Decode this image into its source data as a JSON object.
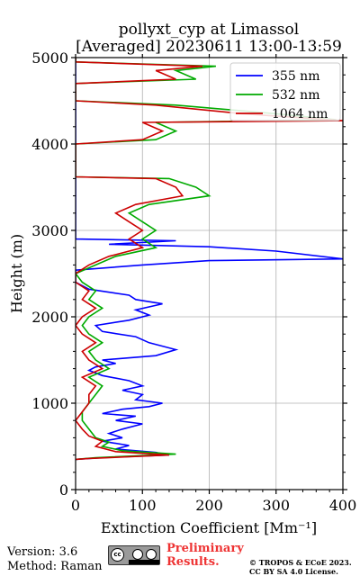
{
  "title": "pollyxt_cyp at Limassol",
  "subtitle": "[Averaged] 20230611 13:00-13:59",
  "footer": {
    "version": "Version: 3.6",
    "method": "Method: Raman",
    "preliminary": [
      "Preliminary",
      "Results."
    ],
    "copyright": [
      "© TROPOS & ECoE 2023.",
      "CC BY SA 4.0 License."
    ],
    "license_logo_text": "cc BY SA"
  },
  "chart_data": {
    "type": "line",
    "xlabel": "Extinction Coefficient [Mm⁻¹]",
    "ylabel": "Height (m)",
    "xlim": [
      0,
      400
    ],
    "ylim": [
      0,
      5000
    ],
    "xticks": [
      0,
      100,
      200,
      300,
      400
    ],
    "yticks": [
      0,
      1000,
      2000,
      3000,
      4000,
      5000
    ],
    "grid": true,
    "legend": "top-right",
    "series": [
      {
        "name": "355 nm",
        "color": "#0000ff",
        "points": [
          [
            0,
            350
          ],
          [
            40,
            370
          ],
          [
            140,
            400
          ],
          [
            120,
            430
          ],
          [
            60,
            470
          ],
          [
            80,
            510
          ],
          [
            40,
            560
          ],
          [
            70,
            600
          ],
          [
            50,
            650
          ],
          [
            70,
            700
          ],
          [
            100,
            760
          ],
          [
            60,
            800
          ],
          [
            90,
            850
          ],
          [
            40,
            880
          ],
          [
            70,
            930
          ],
          [
            110,
            960
          ],
          [
            130,
            1000
          ],
          [
            90,
            1040
          ],
          [
            100,
            1100
          ],
          [
            70,
            1150
          ],
          [
            100,
            1200
          ],
          [
            80,
            1260
          ],
          [
            40,
            1320
          ],
          [
            20,
            1380
          ],
          [
            30,
            1420
          ],
          [
            60,
            1460
          ],
          [
            40,
            1500
          ],
          [
            120,
            1550
          ],
          [
            150,
            1620
          ],
          [
            110,
            1700
          ],
          [
            90,
            1770
          ],
          [
            40,
            1830
          ],
          [
            30,
            1900
          ],
          [
            80,
            1960
          ],
          [
            110,
            2020
          ],
          [
            90,
            2080
          ],
          [
            130,
            2150
          ],
          [
            90,
            2200
          ],
          [
            80,
            2250
          ],
          [
            20,
            2320
          ],
          [
            0,
            2400
          ],
          [
            0,
            2540
          ],
          [
            100,
            2600
          ],
          [
            200,
            2650
          ],
          [
            400,
            2670
          ],
          [
            300,
            2760
          ],
          [
            200,
            2810
          ],
          [
            50,
            2840
          ],
          [
            150,
            2880
          ],
          [
            0,
            2900
          ],
          [
            0,
            5000
          ]
        ]
      },
      {
        "name": "532 nm",
        "color": "#00aa00",
        "points": [
          [
            0,
            350
          ],
          [
            30,
            370
          ],
          [
            150,
            410
          ],
          [
            70,
            450
          ],
          [
            40,
            500
          ],
          [
            50,
            550
          ],
          [
            30,
            600
          ],
          [
            20,
            700
          ],
          [
            10,
            800
          ],
          [
            10,
            900
          ],
          [
            20,
            1000
          ],
          [
            30,
            1100
          ],
          [
            40,
            1200
          ],
          [
            20,
            1300
          ],
          [
            50,
            1400
          ],
          [
            30,
            1500
          ],
          [
            20,
            1600
          ],
          [
            40,
            1700
          ],
          [
            20,
            1800
          ],
          [
            10,
            1900
          ],
          [
            20,
            2000
          ],
          [
            40,
            2100
          ],
          [
            20,
            2200
          ],
          [
            30,
            2300
          ],
          [
            10,
            2400
          ],
          [
            0,
            2500
          ],
          [
            30,
            2600
          ],
          [
            60,
            2700
          ],
          [
            120,
            2800
          ],
          [
            100,
            2900
          ],
          [
            120,
            3000
          ],
          [
            100,
            3100
          ],
          [
            80,
            3200
          ],
          [
            110,
            3300
          ],
          [
            200,
            3400
          ],
          [
            180,
            3500
          ],
          [
            140,
            3600
          ],
          [
            0,
            3620
          ],
          [
            0,
            4000
          ],
          [
            120,
            4050
          ],
          [
            150,
            4150
          ],
          [
            120,
            4250
          ],
          [
            390,
            4280
          ],
          [
            300,
            4350
          ],
          [
            150,
            4450
          ],
          [
            0,
            4500
          ],
          [
            0,
            4700
          ],
          [
            180,
            4750
          ],
          [
            150,
            4850
          ],
          [
            210,
            4900
          ],
          [
            0,
            4950
          ],
          [
            0,
            5000
          ]
        ]
      },
      {
        "name": "1064 nm",
        "color": "#cc0000",
        "points": [
          [
            0,
            350
          ],
          [
            20,
            360
          ],
          [
            140,
            400
          ],
          [
            60,
            440
          ],
          [
            30,
            500
          ],
          [
            40,
            560
          ],
          [
            20,
            620
          ],
          [
            10,
            700
          ],
          [
            0,
            800
          ],
          [
            10,
            900
          ],
          [
            20,
            1000
          ],
          [
            20,
            1100
          ],
          [
            30,
            1200
          ],
          [
            10,
            1300
          ],
          [
            40,
            1400
          ],
          [
            20,
            1500
          ],
          [
            10,
            1600
          ],
          [
            30,
            1700
          ],
          [
            10,
            1800
          ],
          [
            0,
            1900
          ],
          [
            10,
            2000
          ],
          [
            30,
            2100
          ],
          [
            10,
            2200
          ],
          [
            20,
            2300
          ],
          [
            0,
            2400
          ],
          [
            0,
            2500
          ],
          [
            20,
            2600
          ],
          [
            50,
            2700
          ],
          [
            100,
            2800
          ],
          [
            80,
            2900
          ],
          [
            100,
            3000
          ],
          [
            80,
            3100
          ],
          [
            60,
            3200
          ],
          [
            90,
            3300
          ],
          [
            160,
            3400
          ],
          [
            150,
            3500
          ],
          [
            120,
            3600
          ],
          [
            0,
            3620
          ],
          [
            0,
            4000
          ],
          [
            100,
            4050
          ],
          [
            130,
            4150
          ],
          [
            100,
            4250
          ],
          [
            400,
            4270
          ],
          [
            250,
            4350
          ],
          [
            120,
            4450
          ],
          [
            0,
            4500
          ],
          [
            0,
            4700
          ],
          [
            150,
            4750
          ],
          [
            120,
            4850
          ],
          [
            190,
            4900
          ],
          [
            0,
            4950
          ],
          [
            0,
            5000
          ]
        ]
      }
    ]
  }
}
